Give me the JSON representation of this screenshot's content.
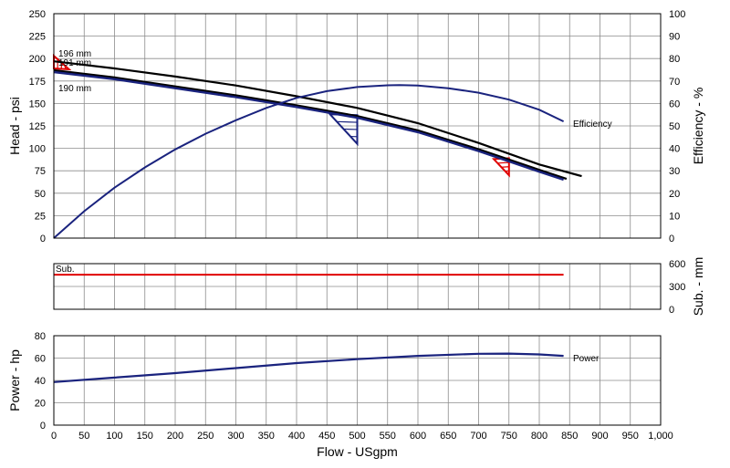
{
  "chart_data": [
    {
      "id": "head",
      "type": "line",
      "xlabel": "",
      "ylabel": "Head - psi",
      "y2label": "Efficiency - %",
      "xlim": [
        0,
        1000
      ],
      "ylim": [
        0,
        250
      ],
      "y2lim": [
        0,
        100
      ],
      "yticks": [
        "0",
        "25",
        "50",
        "75",
        "100",
        "125",
        "150",
        "175",
        "200",
        "225",
        "250"
      ],
      "y2ticks": [
        "0",
        "10",
        "20",
        "30",
        "40",
        "50",
        "60",
        "70",
        "80",
        "90",
        "100"
      ],
      "grid": true,
      "colors": {
        "impeller": "#000000",
        "efficiency": "#1a237e",
        "selected": "#1a237e",
        "marker_red": "#e00000",
        "marker_blue": "#1a237e"
      },
      "series": [
        {
          "name": "196 mm",
          "label": "196 mm",
          "axis": "left",
          "role": "impeller",
          "x": [
            0,
            100,
            200,
            300,
            400,
            500,
            600,
            700,
            800,
            870
          ],
          "y": [
            197,
            189,
            180,
            170,
            158,
            145,
            128,
            106,
            82,
            69
          ]
        },
        {
          "name": "191 mm",
          "label": "191 mm",
          "axis": "left",
          "role": "impeller",
          "x": [
            0,
            100,
            200,
            300,
            400,
            500,
            600,
            700,
            800,
            845
          ],
          "y": [
            187,
            179,
            169,
            159,
            148,
            136,
            120,
            99,
            76,
            66
          ]
        },
        {
          "name": "190 mm",
          "label": "190 mm",
          "axis": "left",
          "role": "selected",
          "x": [
            0,
            100,
            200,
            300,
            400,
            500,
            600,
            700,
            800,
            840
          ],
          "y": [
            185,
            177,
            167,
            157,
            146,
            134,
            118,
            97,
            74,
            65
          ]
        },
        {
          "name": "Efficiency",
          "label": "Efficiency",
          "axis": "right",
          "role": "efficiency",
          "x": [
            0,
            50,
            100,
            150,
            200,
            250,
            300,
            350,
            400,
            450,
            500,
            550,
            570,
            600,
            650,
            700,
            750,
            800,
            840
          ],
          "y": [
            0,
            12,
            22.5,
            31.5,
            39.5,
            46.5,
            52.5,
            58,
            62.5,
            65.5,
            67.3,
            68.1,
            68.2,
            68,
            66.8,
            64.8,
            61.7,
            57.2,
            52
          ]
        }
      ],
      "markers": [
        {
          "color": "red",
          "x": [
            0,
            0,
            25
          ],
          "y": [
            203,
            189,
            188
          ]
        },
        {
          "color": "blue",
          "x": [
            455,
            500,
            500
          ],
          "y": [
            138,
            137,
            105
          ]
        },
        {
          "color": "red",
          "x": [
            725,
            750,
            750
          ],
          "y": [
            88,
            89,
            70
          ]
        }
      ]
    },
    {
      "id": "submergence",
      "type": "line",
      "xlabel": "",
      "ylabel": "",
      "y2label": "Sub. - mm",
      "xlim": [
        0,
        1000
      ],
      "ylim": [
        0,
        600
      ],
      "y2ticks": [
        "0",
        "300",
        "600"
      ],
      "grid": true,
      "series": [
        {
          "name": "Sub.",
          "label": "Sub.",
          "axis": "left",
          "color": "#e00000",
          "x": [
            0,
            840
          ],
          "y": [
            455,
            455
          ]
        }
      ]
    },
    {
      "id": "power",
      "type": "line",
      "xlabel": "Flow - USgpm",
      "ylabel": "Power - hp",
      "xlim": [
        0,
        1000
      ],
      "ylim": [
        0,
        80
      ],
      "yticks": [
        "0",
        "20",
        "40",
        "60",
        "80"
      ],
      "xticks": [
        "0",
        "50",
        "100",
        "150",
        "200",
        "250",
        "300",
        "350",
        "400",
        "450",
        "500",
        "550",
        "600",
        "650",
        "700",
        "750",
        "800",
        "850",
        "900",
        "950",
        "1,000"
      ],
      "grid": true,
      "series": [
        {
          "name": "Power",
          "label": "Power",
          "axis": "left",
          "color": "#1a237e",
          "x": [
            0,
            100,
            200,
            300,
            400,
            500,
            600,
            700,
            750,
            800,
            840
          ],
          "y": [
            38.5,
            42.5,
            46.5,
            51,
            55.5,
            59,
            62,
            63.8,
            64,
            63.3,
            62
          ]
        }
      ]
    }
  ]
}
